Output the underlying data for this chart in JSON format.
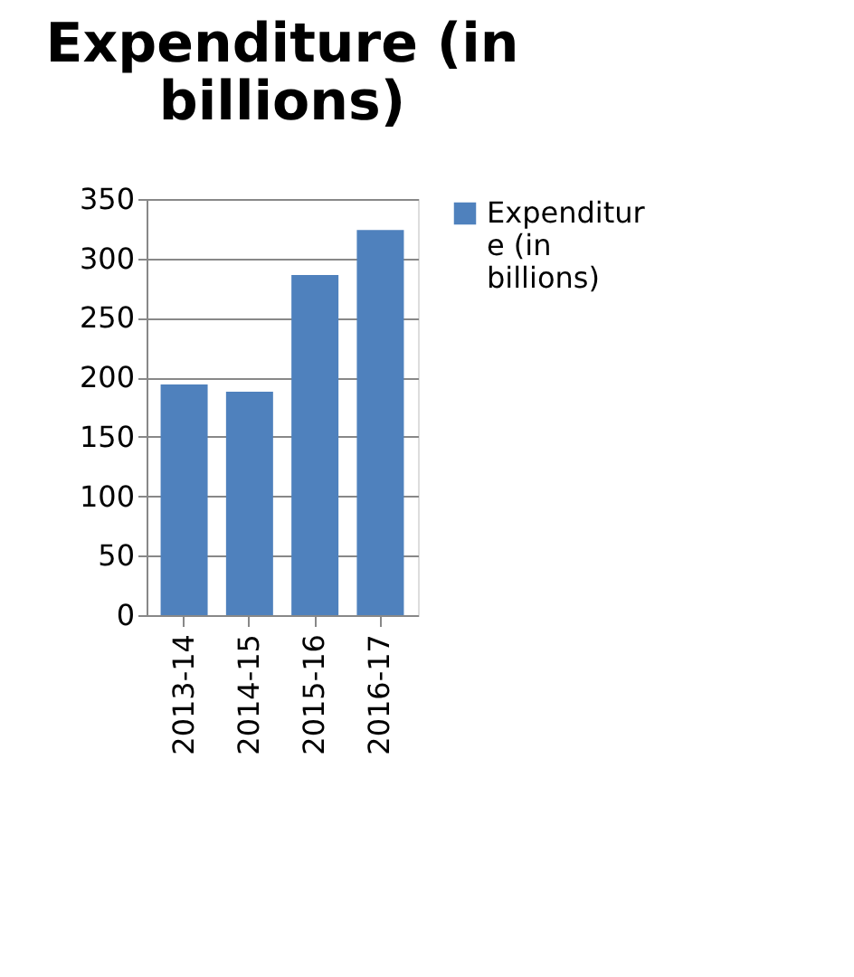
{
  "chart_data": {
    "type": "bar",
    "title": "Expenditure (in billions)",
    "categories": [
      "2013-14",
      "2014-15",
      "2015-16",
      "2016-17"
    ],
    "series": [
      {
        "name": "Expenditure (in billions)",
        "color": "#4f81bd",
        "values": [
          194,
          188,
          286,
          324
        ]
      }
    ],
    "ylim": [
      0,
      350
    ],
    "yticks": [
      0,
      50,
      100,
      150,
      200,
      250,
      300,
      350
    ],
    "grid": "y",
    "legend": "right"
  }
}
